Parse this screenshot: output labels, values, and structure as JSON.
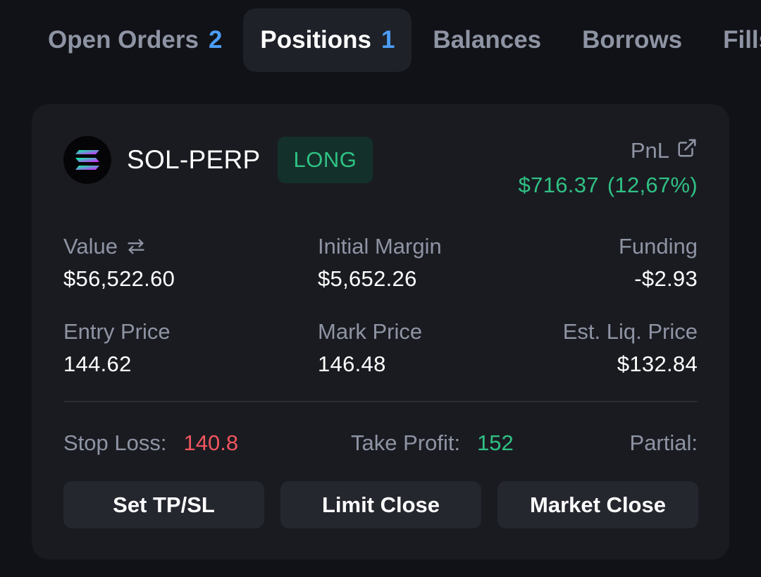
{
  "tabs": [
    {
      "label": "Open Orders",
      "count": "2",
      "active": false
    },
    {
      "label": "Positions",
      "count": "1",
      "active": true
    },
    {
      "label": "Balances",
      "count": "",
      "active": false
    },
    {
      "label": "Borrows",
      "count": "",
      "active": false
    },
    {
      "label": "Fills",
      "count": "",
      "active": false
    }
  ],
  "position": {
    "symbol": "SOL-PERP",
    "side": "LONG",
    "pnl": {
      "label": "PnL",
      "amount": "$716.37",
      "percent": "(12,67%)"
    },
    "stats": {
      "value": {
        "label": "Value",
        "value": "$56,522.60"
      },
      "initial_margin": {
        "label": "Initial Margin",
        "value": "$5,652.26"
      },
      "funding": {
        "label": "Funding",
        "value": "-$2.93"
      },
      "entry_price": {
        "label": "Entry Price",
        "value": "144.62"
      },
      "mark_price": {
        "label": "Mark Price",
        "value": "146.48"
      },
      "liq_price": {
        "label": "Est. Liq. Price",
        "value": "$132.84"
      }
    },
    "stop_loss": {
      "label": "Stop Loss:",
      "value": "140.8"
    },
    "take_profit": {
      "label": "Take Profit:",
      "value": "152"
    },
    "partial": {
      "label": "Partial:"
    }
  },
  "actions": {
    "set_tpsl": "Set TP/SL",
    "limit_close": "Limit Close",
    "market_close": "Market Close"
  },
  "colors": {
    "background": "#111217",
    "card": "#1a1b21",
    "positive": "#2fc184",
    "negative": "#f0555e",
    "accent": "#4b9cf5",
    "muted": "#8e94a3"
  },
  "icons": {
    "logo": "solana-logo-icon",
    "pnl_link": "external-link-icon",
    "value_toggle": "swap-arrows-icon"
  }
}
